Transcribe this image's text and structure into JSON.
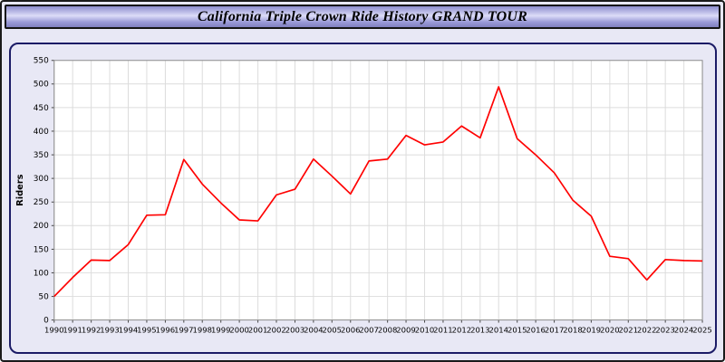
{
  "title_bar": {
    "title": "California Triple Crown Ride History GRAND TOUR"
  },
  "colors": {
    "page_background": "#e8e8f5",
    "panel_border": "#1b1b66",
    "plot_background": "#ffffff",
    "grid": "#dcdcdc",
    "axis_frame": "#8a8a8a",
    "tick": "#444444",
    "line": "#ff0000",
    "title_bar_gradient_top": "#8c8ccd",
    "title_bar_gradient_mid": "#dcdcf8"
  },
  "chart_data": {
    "type": "line",
    "title": "California Triple Crown Ride History GRAND TOUR",
    "xlabel": "",
    "ylabel": "Riders",
    "ylim": [
      0,
      550
    ],
    "ytick_step": 50,
    "grid": true,
    "legend": "none",
    "line_color": "#ff0000",
    "x": [
      1990,
      1991,
      1992,
      1993,
      1994,
      1995,
      1996,
      1997,
      1998,
      1999,
      2000,
      2001,
      2002,
      2003,
      2004,
      2005,
      2006,
      2007,
      2008,
      2009,
      2010,
      2011,
      2012,
      2013,
      2014,
      2015,
      2016,
      2017,
      2018,
      2019,
      2020,
      2021,
      2022,
      2023,
      2024,
      2025
    ],
    "values": [
      50,
      90,
      127,
      126,
      160,
      222,
      223,
      340,
      288,
      248,
      212,
      210,
      265,
      277,
      341,
      305,
      267,
      337,
      341,
      391,
      371,
      377,
      411,
      386,
      494,
      384,
      350,
      312,
      254,
      220,
      135,
      130,
      85,
      128,
      126,
      125
    ]
  }
}
